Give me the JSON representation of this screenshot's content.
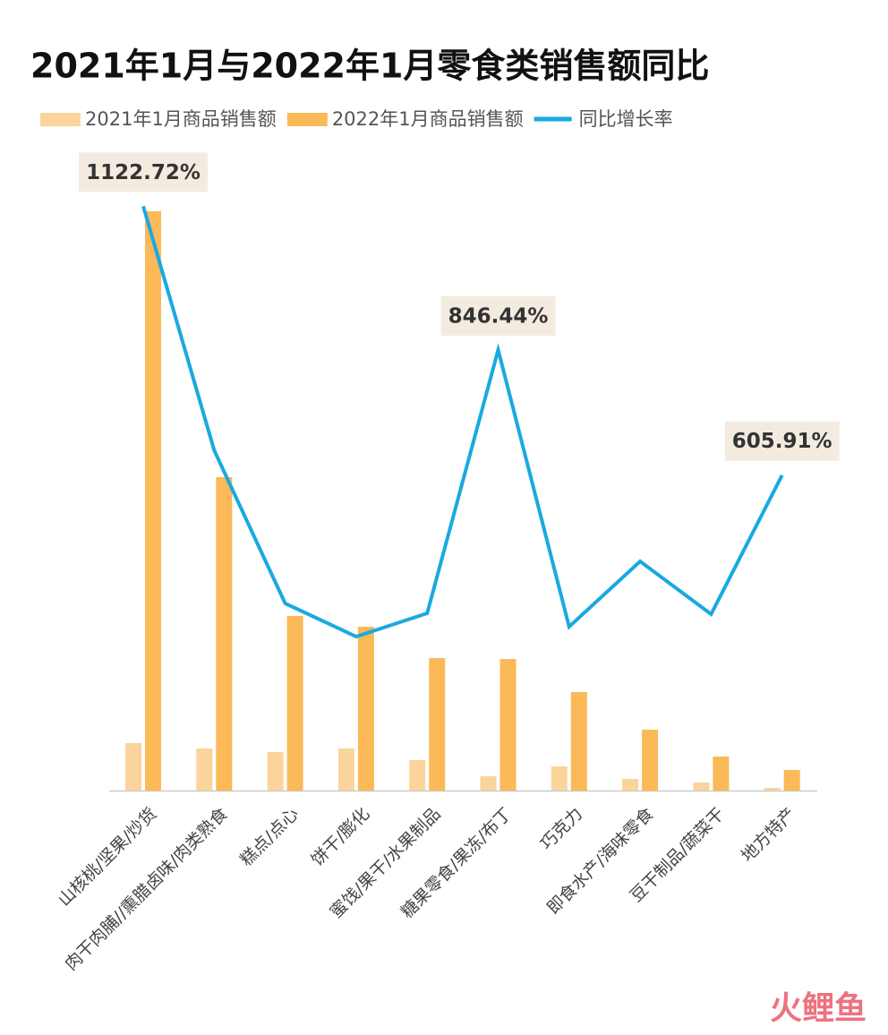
{
  "chart_data": {
    "type": "bar",
    "title": "2021年1月与2022年1月零食类销售额同比",
    "categories": [
      "山核桃/坚果/炒货",
      "肉干肉脯//熏腊卤味/肉类熟食",
      "糕点/点心",
      "饼干/膨化",
      "蜜饯/果干/水果制品",
      "糖果零食/果冻/布丁",
      "巧克力",
      "即食水产/海味零食",
      "豆干制品/蔬菜干",
      "地方特产"
    ],
    "series": [
      {
        "name": "2021年1月商品销售额",
        "color": "#fad49b",
        "type": "bar",
        "values": [
          53,
          47,
          43,
          47,
          34,
          16,
          27,
          13,
          9,
          3
        ]
      },
      {
        "name": "2022年1月商品销售额",
        "color": "#fbb958",
        "type": "bar",
        "values": [
          647,
          350,
          195,
          183,
          148,
          147,
          110,
          68,
          38,
          23
        ]
      },
      {
        "name": "同比增长率",
        "color": "#1aa9e0",
        "type": "line",
        "axis": "y2",
        "values": [
          1122.72,
          653.6,
          359.5,
          295.8,
          340.6,
          846.44,
          314.8,
          440.3,
          338.8,
          605.91
        ],
        "value_labels": [
          "1122.72%",
          null,
          null,
          null,
          null,
          "846.44%",
          null,
          null,
          null,
          "605.91%"
        ]
      }
    ],
    "ylim": [
      0,
      700
    ],
    "y2lim": [
      0,
      1204
    ],
    "legend": "top-left",
    "watermark": "火鲤鱼"
  }
}
